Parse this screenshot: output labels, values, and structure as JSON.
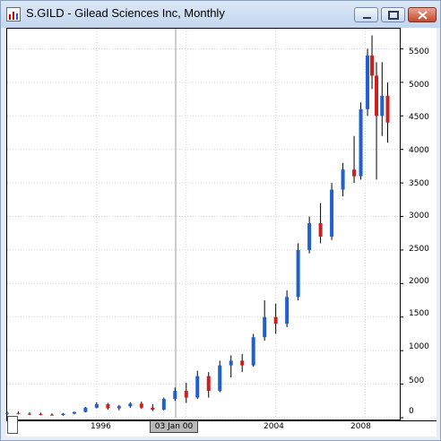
{
  "window": {
    "title": "S.GILD - Gilead Sciences Inc, Monthly",
    "icon": "chart-app-icon",
    "buttons": [
      "minimize",
      "maximize",
      "close"
    ]
  },
  "crosshair": {
    "date_label": "03 Jan 00"
  },
  "colors": {
    "up": "#1f5fd0",
    "down": "#cc1f1f",
    "wick": "#000000",
    "grid": "#d6d6d6"
  },
  "chart_data": {
    "type": "candlestick",
    "title": "S.GILD - Gilead Sciences Inc, Monthly",
    "x_tick_labels": [
      "1996",
      "2004",
      "2008"
    ],
    "y_tick_labels": [
      "0",
      "500",
      "1000",
      "1500",
      "2000",
      "2500",
      "3000",
      "3500",
      "4000",
      "4500",
      "5000",
      "5500"
    ],
    "ylim": [
      0,
      5800
    ],
    "xlim": [
      1992.0,
      2009.5
    ],
    "grid": true,
    "series": [
      {
        "x": 1992.0,
        "o": 60,
        "h": 90,
        "l": 40,
        "c": 70
      },
      {
        "x": 1992.5,
        "o": 70,
        "h": 95,
        "l": 50,
        "c": 60
      },
      {
        "x": 1993.0,
        "o": 60,
        "h": 80,
        "l": 40,
        "c": 55
      },
      {
        "x": 1993.5,
        "o": 55,
        "h": 75,
        "l": 35,
        "c": 45
      },
      {
        "x": 1994.0,
        "o": 45,
        "h": 65,
        "l": 30,
        "c": 40
      },
      {
        "x": 1994.5,
        "o": 40,
        "h": 70,
        "l": 30,
        "c": 60
      },
      {
        "x": 1995.0,
        "o": 60,
        "h": 90,
        "l": 50,
        "c": 85
      },
      {
        "x": 1995.5,
        "o": 85,
        "h": 160,
        "l": 80,
        "c": 150
      },
      {
        "x": 1996.0,
        "o": 150,
        "h": 230,
        "l": 140,
        "c": 200
      },
      {
        "x": 1996.5,
        "o": 200,
        "h": 220,
        "l": 120,
        "c": 140
      },
      {
        "x": 1997.0,
        "o": 140,
        "h": 190,
        "l": 110,
        "c": 170
      },
      {
        "x": 1997.5,
        "o": 170,
        "h": 230,
        "l": 150,
        "c": 210
      },
      {
        "x": 1998.0,
        "o": 210,
        "h": 240,
        "l": 130,
        "c": 150
      },
      {
        "x": 1998.5,
        "o": 150,
        "h": 200,
        "l": 100,
        "c": 120
      },
      {
        "x": 1999.0,
        "o": 120,
        "h": 300,
        "l": 110,
        "c": 280
      },
      {
        "x": 1999.5,
        "o": 280,
        "h": 450,
        "l": 250,
        "c": 400
      },
      {
        "x": 2000.0,
        "o": 400,
        "h": 520,
        "l": 220,
        "c": 300
      },
      {
        "x": 2000.5,
        "o": 300,
        "h": 700,
        "l": 280,
        "c": 620
      },
      {
        "x": 2001.0,
        "o": 620,
        "h": 680,
        "l": 300,
        "c": 400
      },
      {
        "x": 2001.5,
        "o": 400,
        "h": 850,
        "l": 380,
        "c": 780
      },
      {
        "x": 2002.0,
        "o": 780,
        "h": 930,
        "l": 600,
        "c": 850
      },
      {
        "x": 2002.5,
        "o": 850,
        "h": 950,
        "l": 680,
        "c": 780
      },
      {
        "x": 2003.0,
        "o": 780,
        "h": 1250,
        "l": 760,
        "c": 1200
      },
      {
        "x": 2003.5,
        "o": 1200,
        "h": 1750,
        "l": 1150,
        "c": 1500
      },
      {
        "x": 2004.0,
        "o": 1500,
        "h": 1700,
        "l": 1250,
        "c": 1400
      },
      {
        "x": 2004.5,
        "o": 1400,
        "h": 1900,
        "l": 1350,
        "c": 1800
      },
      {
        "x": 2005.0,
        "o": 1800,
        "h": 2600,
        "l": 1750,
        "c": 2500
      },
      {
        "x": 2005.5,
        "o": 2500,
        "h": 3000,
        "l": 2450,
        "c": 2900
      },
      {
        "x": 2006.0,
        "o": 2900,
        "h": 3200,
        "l": 2600,
        "c": 2700
      },
      {
        "x": 2006.5,
        "o": 2700,
        "h": 3500,
        "l": 2650,
        "c": 3400
      },
      {
        "x": 2007.0,
        "o": 3400,
        "h": 3800,
        "l": 3300,
        "c": 3700
      },
      {
        "x": 2007.5,
        "o": 3700,
        "h": 4200,
        "l": 3500,
        "c": 3600
      },
      {
        "x": 2007.8,
        "o": 3600,
        "h": 4700,
        "l": 3550,
        "c": 4600
      },
      {
        "x": 2008.1,
        "o": 4600,
        "h": 5500,
        "l": 4500,
        "c": 5400
      },
      {
        "x": 2008.3,
        "o": 5400,
        "h": 5700,
        "l": 4900,
        "c": 5100
      },
      {
        "x": 2008.5,
        "o": 5100,
        "h": 5300,
        "l": 3550,
        "c": 4500
      },
      {
        "x": 2008.75,
        "o": 4500,
        "h": 5300,
        "l": 4200,
        "c": 4800
      },
      {
        "x": 2009.0,
        "o": 4800,
        "h": 5000,
        "l": 4100,
        "c": 4400
      }
    ]
  }
}
